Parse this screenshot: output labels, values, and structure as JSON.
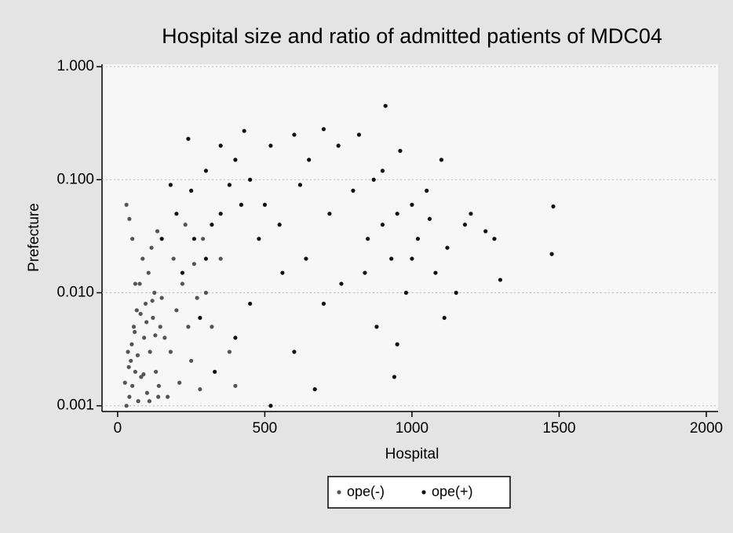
{
  "chart_data": {
    "type": "scatter",
    "title": "Hospital size and ratio of admitted patients of MDC04",
    "xlabel": "Hospital",
    "ylabel": "Prefecture",
    "yscale": "log",
    "grid": true,
    "legend": "bottom",
    "xlim": [
      -53,
      2040
    ],
    "xticks": [
      0,
      500,
      1000,
      1500,
      2000
    ],
    "ylim": [
      0.00089,
      1.05
    ],
    "yticks": [
      {
        "value": 1,
        "label": "1.000"
      },
      {
        "value": 0.1,
        "label": "0.100"
      },
      {
        "value": 0.01,
        "label": "0.010"
      },
      {
        "value": 0.001,
        "label": "0.001"
      }
    ],
    "series": [
      {
        "name": "ope(-)",
        "color": "#555555",
        "x": [
          30,
          40,
          50,
          60,
          35,
          45,
          70,
          80,
          90,
          55,
          65,
          100,
          110,
          120,
          130,
          140,
          150,
          160,
          75,
          85,
          95,
          105,
          115,
          125,
          135,
          145,
          170,
          180,
          190,
          200,
          210,
          220,
          230,
          240,
          250,
          260,
          270,
          280,
          290,
          40,
          30,
          50,
          60,
          25,
          38,
          48,
          58,
          68,
          78,
          88,
          98,
          108,
          118,
          128,
          138,
          300,
          320,
          350,
          380,
          400
        ],
        "values": [
          0.001,
          0.0012,
          0.0015,
          0.002,
          0.003,
          0.0025,
          0.0011,
          0.0018,
          0.004,
          0.005,
          0.007,
          0.0013,
          0.003,
          0.006,
          0.002,
          0.0015,
          0.009,
          0.004,
          0.012,
          0.02,
          0.008,
          0.015,
          0.025,
          0.01,
          0.035,
          0.005,
          0.0012,
          0.003,
          0.02,
          0.007,
          0.0016,
          0.012,
          0.04,
          0.005,
          0.0025,
          0.018,
          0.009,
          0.0014,
          0.03,
          0.045,
          0.06,
          0.03,
          0.012,
          0.0016,
          0.0022,
          0.0035,
          0.0045,
          0.0028,
          0.0065,
          0.0019,
          0.0055,
          0.0011,
          0.0085,
          0.0042,
          0.0012,
          0.01,
          0.005,
          0.02,
          0.003,
          0.0015
        ]
      },
      {
        "name": "ope(+)",
        "color": "#111111",
        "x": [
          200,
          250,
          300,
          350,
          400,
          430,
          450,
          500,
          520,
          550,
          600,
          620,
          650,
          700,
          720,
          750,
          800,
          820,
          850,
          870,
          900,
          910,
          930,
          950,
          960,
          980,
          1000,
          1020,
          1050,
          1080,
          1100,
          1120,
          1150,
          1180,
          1200,
          1250,
          1280,
          1300,
          1480,
          1475,
          940,
          950,
          880,
          1110,
          670,
          520,
          600,
          700,
          400,
          450,
          300,
          350,
          330,
          280,
          240,
          150,
          180,
          220,
          480,
          560,
          640,
          760,
          840,
          900,
          1000,
          1060,
          420,
          380,
          320,
          260
        ],
        "values": [
          0.05,
          0.08,
          0.12,
          0.2,
          0.15,
          0.27,
          0.1,
          0.06,
          0.2,
          0.04,
          0.25,
          0.09,
          0.15,
          0.28,
          0.05,
          0.2,
          0.08,
          0.25,
          0.03,
          0.1,
          0.12,
          0.45,
          0.02,
          0.05,
          0.18,
          0.01,
          0.06,
          0.03,
          0.08,
          0.015,
          0.15,
          0.025,
          0.01,
          0.04,
          0.05,
          0.035,
          0.03,
          0.013,
          0.058,
          0.022,
          0.0018,
          0.0035,
          0.005,
          0.006,
          0.0014,
          0.001,
          0.003,
          0.008,
          0.004,
          0.008,
          0.02,
          0.05,
          0.002,
          0.006,
          0.23,
          0.03,
          0.09,
          0.015,
          0.03,
          0.015,
          0.02,
          0.012,
          0.015,
          0.04,
          0.02,
          0.045,
          0.06,
          0.09,
          0.04,
          0.03
        ]
      }
    ]
  }
}
